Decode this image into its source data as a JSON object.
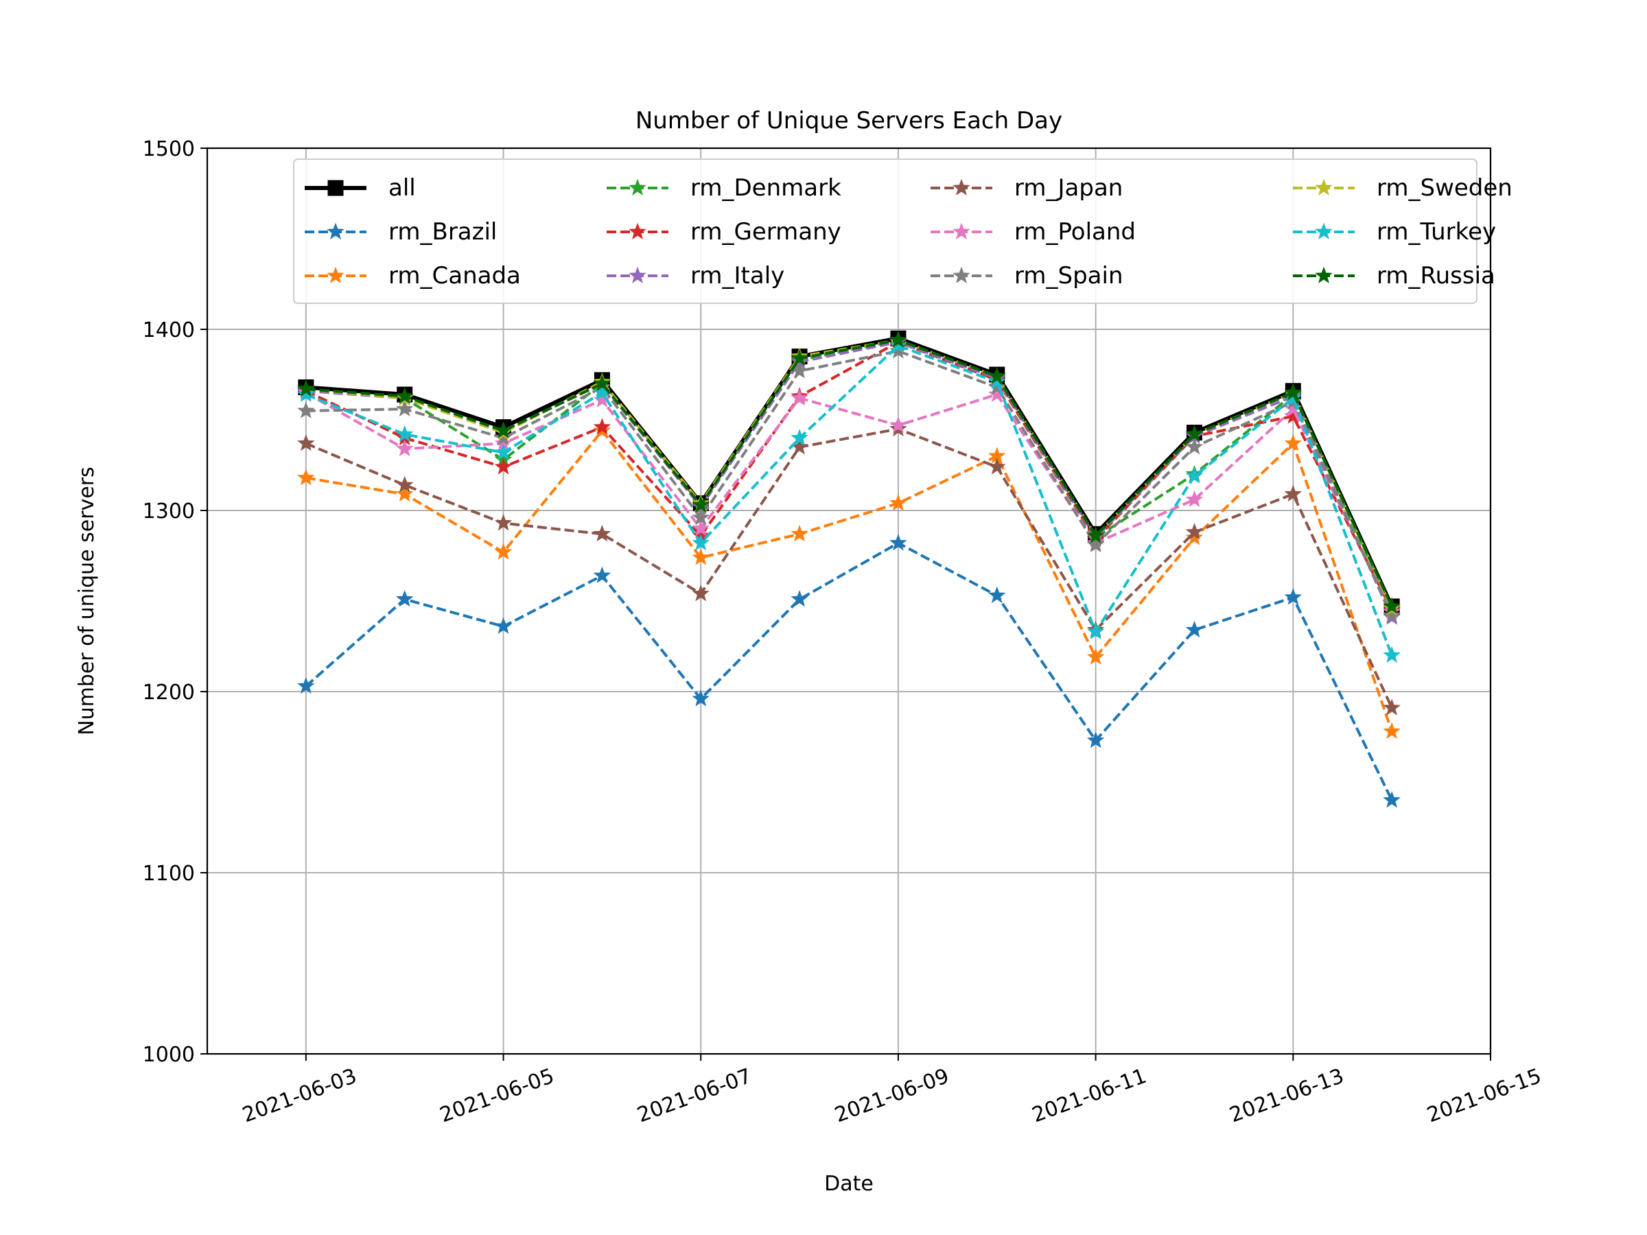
{
  "chart_data": {
    "type": "line",
    "title": "Number of Unique Servers Each Day",
    "xlabel": "Date",
    "ylabel": "Number of unique servers",
    "ylim": [
      1000,
      1500
    ],
    "xlim": [
      "2021-06-02",
      "2021-06-15"
    ],
    "y_ticks": [
      1000,
      1100,
      1200,
      1300,
      1400,
      1500
    ],
    "x_ticks": [
      "2021-06-03",
      "2021-06-05",
      "2021-06-07",
      "2021-06-09",
      "2021-06-11",
      "2021-06-13",
      "2021-06-15"
    ],
    "grid": true,
    "legend_position": "top",
    "x": [
      "2021-06-03",
      "2021-06-04",
      "2021-06-05",
      "2021-06-06",
      "2021-06-07",
      "2021-06-08",
      "2021-06-09",
      "2021-06-10",
      "2021-06-11",
      "2021-06-12",
      "2021-06-13",
      "2021-06-14"
    ],
    "series": [
      {
        "name": "all",
        "color": "#000000",
        "style": "solid",
        "marker": "square",
        "values": [
          1368,
          1364,
          1346,
          1372,
          1304,
          1385,
          1395,
          1375,
          1287,
          1343,
          1366,
          1247
        ]
      },
      {
        "name": "rm_Brazil",
        "color": "#1f77b4",
        "style": "dashed",
        "marker": "star",
        "values": [
          1203,
          1251,
          1236,
          1264,
          1196,
          1251,
          1282,
          1253,
          1173,
          1234,
          1252,
          1140
        ]
      },
      {
        "name": "rm_Canada",
        "color": "#ff7f0e",
        "style": "dashed",
        "marker": "star",
        "values": [
          1318,
          1309,
          1277,
          1344,
          1274,
          1287,
          1304,
          1330,
          1219,
          1285,
          1337,
          1178
        ]
      },
      {
        "name": "rm_Denmark",
        "color": "#2ca02c",
        "style": "dashed",
        "marker": "star",
        "values": [
          1367,
          1362,
          1328,
          1370,
          1302,
          1383,
          1394,
          1373,
          1285,
          1320,
          1364,
          1246
        ]
      },
      {
        "name": "rm_Germany",
        "color": "#d62728",
        "style": "dashed",
        "marker": "star",
        "values": [
          1366,
          1340,
          1324,
          1346,
          1286,
          1363,
          1393,
          1372,
          1284,
          1341,
          1352,
          1245
        ]
      },
      {
        "name": "rm_Italy",
        "color": "#9467bd",
        "style": "dashed",
        "marker": "star",
        "values": [
          1366,
          1362,
          1344,
          1370,
          1302,
          1382,
          1393,
          1373,
          1285,
          1341,
          1363,
          1241
        ]
      },
      {
        "name": "rm_Japan",
        "color": "#8c564b",
        "style": "dashed",
        "marker": "star",
        "values": [
          1337,
          1314,
          1293,
          1287,
          1254,
          1335,
          1345,
          1324,
          1234,
          1288,
          1309,
          1191
        ]
      },
      {
        "name": "rm_Poland",
        "color": "#e377c2",
        "style": "dashed",
        "marker": "star",
        "values": [
          1365,
          1334,
          1337,
          1361,
          1290,
          1362,
          1347,
          1364,
          1282,
          1306,
          1356,
          1244
        ]
      },
      {
        "name": "rm_Spain",
        "color": "#7f7f7f",
        "style": "dashed",
        "marker": "star",
        "values": [
          1355,
          1356,
          1340,
          1368,
          1296,
          1377,
          1388,
          1368,
          1281,
          1335,
          1360,
          1242
        ]
      },
      {
        "name": "rm_Sweden",
        "color": "#bcbd22",
        "style": "dashed",
        "marker": "star",
        "values": [
          1367,
          1362,
          1343,
          1371,
          1304,
          1385,
          1394,
          1374,
          1286,
          1342,
          1365,
          1246
        ]
      },
      {
        "name": "rm_Turkey",
        "color": "#17becf",
        "style": "dashed",
        "marker": "star",
        "values": [
          1364,
          1342,
          1332,
          1365,
          1282,
          1340,
          1391,
          1371,
          1233,
          1319,
          1362,
          1220
        ]
      },
      {
        "name": "rm_Russia",
        "color": "#006400",
        "style": "dashed",
        "marker": "star",
        "values": [
          1367,
          1363,
          1344,
          1370,
          1303,
          1384,
          1394,
          1374,
          1286,
          1342,
          1365,
          1247
        ]
      }
    ]
  }
}
